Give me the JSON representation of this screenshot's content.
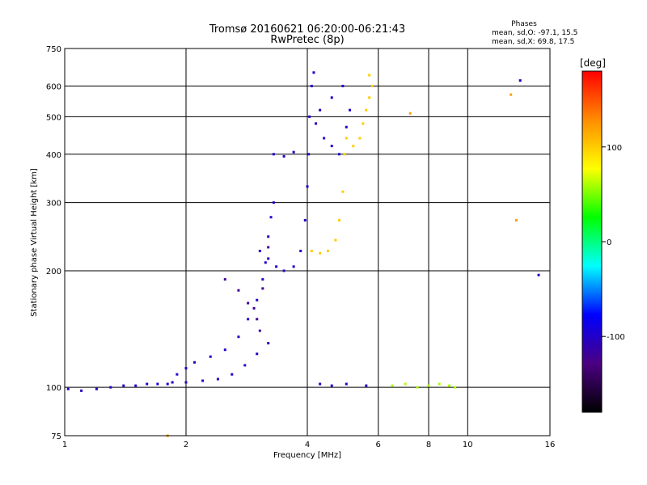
{
  "chart_data": {
    "type": "scatter",
    "title": "Tromsø 20160621 06:20:00-06:21:43",
    "subtitle": "RwPretec (8p)",
    "xlabel": "Frequency [MHz]",
    "ylabel": "Stationary phase Virtual Height [km]",
    "x_scale": "log",
    "y_scale": "log",
    "xlim": [
      1,
      16
    ],
    "ylim": [
      75,
      750
    ],
    "x_ticks": [
      1,
      2,
      4,
      6,
      8,
      10,
      16
    ],
    "y_ticks": [
      75,
      100,
      200,
      300,
      400,
      500,
      600,
      750
    ],
    "grid": true,
    "stats_header": "Phases",
    "stats": [
      "mean, sd,O: -97.1, 15.5",
      "mean, sd,X: 69.8, 17.5"
    ],
    "colorbar": {
      "label": "[deg]",
      "ticks": [
        100,
        0,
        -100
      ],
      "range": [
        -180,
        180
      ],
      "colors": [
        "#000000",
        "#4b0082",
        "#0000ff",
        "#00ffff",
        "#00ff00",
        "#ffff00",
        "#ff8c00",
        "#ff0000"
      ]
    },
    "series": [
      {
        "color_value": -100,
        "points": [
          [
            1.02,
            99
          ],
          [
            1.1,
            98
          ],
          [
            1.2,
            99
          ],
          [
            1.3,
            100
          ],
          [
            1.4,
            101
          ],
          [
            1.5,
            101
          ],
          [
            1.6,
            102
          ],
          [
            1.7,
            102
          ],
          [
            1.8,
            102
          ]
        ]
      },
      {
        "color_value": -100,
        "points": [
          [
            1.85,
            103
          ],
          [
            2.0,
            103
          ],
          [
            2.2,
            104
          ],
          [
            2.4,
            105
          ],
          [
            2.6,
            108
          ],
          [
            2.8,
            114
          ],
          [
            3.0,
            122
          ],
          [
            3.2,
            130
          ]
        ]
      },
      {
        "color_value": -100,
        "points": [
          [
            1.9,
            108
          ],
          [
            2.0,
            112
          ],
          [
            2.1,
            116
          ],
          [
            2.3,
            120
          ],
          [
            2.5,
            125
          ],
          [
            2.7,
            135
          ],
          [
            2.85,
            150
          ],
          [
            3.0,
            168
          ],
          [
            3.1,
            190
          ],
          [
            3.15,
            210
          ],
          [
            3.2,
            245
          ],
          [
            3.25,
            275
          ],
          [
            3.3,
            300
          ]
        ]
      },
      {
        "color_value": -120,
        "points": [
          [
            2.5,
            190
          ],
          [
            2.7,
            178
          ],
          [
            2.85,
            165
          ],
          [
            2.95,
            160
          ],
          [
            3.0,
            150
          ],
          [
            3.05,
            140
          ],
          [
            3.1,
            180
          ],
          [
            3.2,
            230
          ]
        ]
      },
      {
        "color_value": -100,
        "points": [
          [
            3.05,
            225
          ],
          [
            3.2,
            215
          ],
          [
            3.35,
            205
          ],
          [
            3.5,
            200
          ],
          [
            3.7,
            205
          ],
          [
            3.85,
            225
          ],
          [
            3.95,
            270
          ],
          [
            4.0,
            330
          ],
          [
            4.03,
            400
          ],
          [
            4.05,
            500
          ],
          [
            4.1,
            600
          ],
          [
            4.15,
            650
          ]
        ]
      },
      {
        "color_value": -100,
        "points": [
          [
            3.3,
            400
          ],
          [
            3.5,
            395
          ],
          [
            3.7,
            405
          ]
        ]
      },
      {
        "color_value": -100,
        "points": [
          [
            4.2,
            480
          ],
          [
            4.4,
            440
          ],
          [
            4.6,
            420
          ],
          [
            4.8,
            400
          ],
          [
            5.0,
            470
          ],
          [
            5.1,
            520
          ],
          [
            4.9,
            600
          ],
          [
            4.6,
            560
          ],
          [
            4.3,
            520
          ]
        ]
      },
      {
        "color_value": 100,
        "points": [
          [
            4.1,
            225
          ],
          [
            4.3,
            222
          ],
          [
            4.5,
            225
          ],
          [
            4.7,
            240
          ],
          [
            4.8,
            270
          ],
          [
            4.9,
            320
          ],
          [
            4.95,
            400
          ],
          [
            5.0,
            440
          ]
        ]
      },
      {
        "color_value": 100,
        "points": [
          [
            5.2,
            420
          ],
          [
            5.4,
            440
          ],
          [
            5.5,
            480
          ],
          [
            5.6,
            520
          ],
          [
            5.7,
            560
          ],
          [
            5.8,
            600
          ],
          [
            5.7,
            640
          ]
        ]
      },
      {
        "color_value": 60,
        "points": [
          [
            6.5,
            101
          ],
          [
            7.0,
            102
          ],
          [
            7.5,
            100
          ],
          [
            8.0,
            101
          ],
          [
            8.5,
            102
          ],
          [
            9.0,
            101
          ],
          [
            9.3,
            100
          ]
        ]
      },
      {
        "color_value": -100,
        "points": [
          [
            4.3,
            102
          ],
          [
            4.6,
            101
          ],
          [
            5.0,
            102
          ],
          [
            5.6,
            101
          ],
          [
            13.5,
            620
          ],
          [
            15.0,
            195
          ]
        ]
      },
      {
        "color_value": 120,
        "points": [
          [
            1.8,
            75
          ],
          [
            7.2,
            510
          ],
          [
            12.8,
            570
          ],
          [
            13.2,
            270
          ]
        ]
      }
    ]
  }
}
